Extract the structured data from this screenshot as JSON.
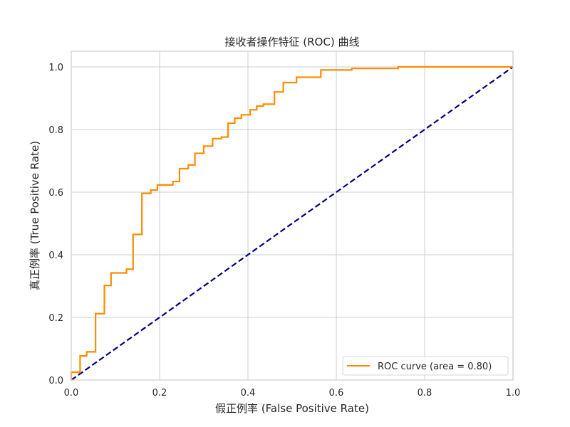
{
  "chart_data": {
    "type": "line",
    "title": "接收者操作特征 (ROC) 曲线",
    "xlabel": "假正例率 (False Positive Rate)",
    "ylabel": "真正例率 (True Positive Rate)",
    "xlim": [
      0.0,
      1.0
    ],
    "ylim": [
      0.0,
      1.05
    ],
    "x_ticks": [
      "0.0",
      "0.2",
      "0.4",
      "0.6",
      "0.8",
      "1.0"
    ],
    "y_ticks": [
      "0.0",
      "0.2",
      "0.4",
      "0.6",
      "0.8",
      "1.0"
    ],
    "grid": true,
    "legend_position": "lower-right",
    "series": [
      {
        "name": "ROC curve (area = 0.80)",
        "color": "#ff8c00",
        "style": "solid",
        "step": true,
        "x": [
          0.0,
          0.0,
          0.02,
          0.02,
          0.035,
          0.035,
          0.055,
          0.055,
          0.075,
          0.075,
          0.09,
          0.09,
          0.125,
          0.125,
          0.14,
          0.14,
          0.16,
          0.16,
          0.18,
          0.18,
          0.195,
          0.195,
          0.23,
          0.23,
          0.245,
          0.245,
          0.265,
          0.265,
          0.28,
          0.28,
          0.3,
          0.3,
          0.32,
          0.32,
          0.34,
          0.34,
          0.355,
          0.355,
          0.37,
          0.37,
          0.385,
          0.385,
          0.405,
          0.405,
          0.42,
          0.42,
          0.435,
          0.435,
          0.46,
          0.46,
          0.48,
          0.48,
          0.51,
          0.51,
          0.565,
          0.565,
          0.635,
          0.635,
          0.74,
          0.74,
          1.0
        ],
        "y": [
          0.0,
          0.025,
          0.025,
          0.077,
          0.077,
          0.09,
          0.09,
          0.212,
          0.212,
          0.302,
          0.302,
          0.342,
          0.342,
          0.354,
          0.354,
          0.465,
          0.465,
          0.596,
          0.596,
          0.607,
          0.607,
          0.623,
          0.623,
          0.634,
          0.634,
          0.675,
          0.675,
          0.687,
          0.687,
          0.724,
          0.724,
          0.747,
          0.747,
          0.771,
          0.771,
          0.776,
          0.776,
          0.82,
          0.82,
          0.836,
          0.836,
          0.847,
          0.847,
          0.863,
          0.863,
          0.875,
          0.875,
          0.881,
          0.881,
          0.92,
          0.92,
          0.95,
          0.95,
          0.967,
          0.967,
          0.99,
          0.99,
          0.995,
          0.995,
          1.0,
          1.0
        ]
      },
      {
        "name": "",
        "color": "#000080",
        "style": "dashed",
        "step": false,
        "x": [
          0.0,
          1.0
        ],
        "y": [
          0.0,
          1.0
        ]
      }
    ]
  }
}
